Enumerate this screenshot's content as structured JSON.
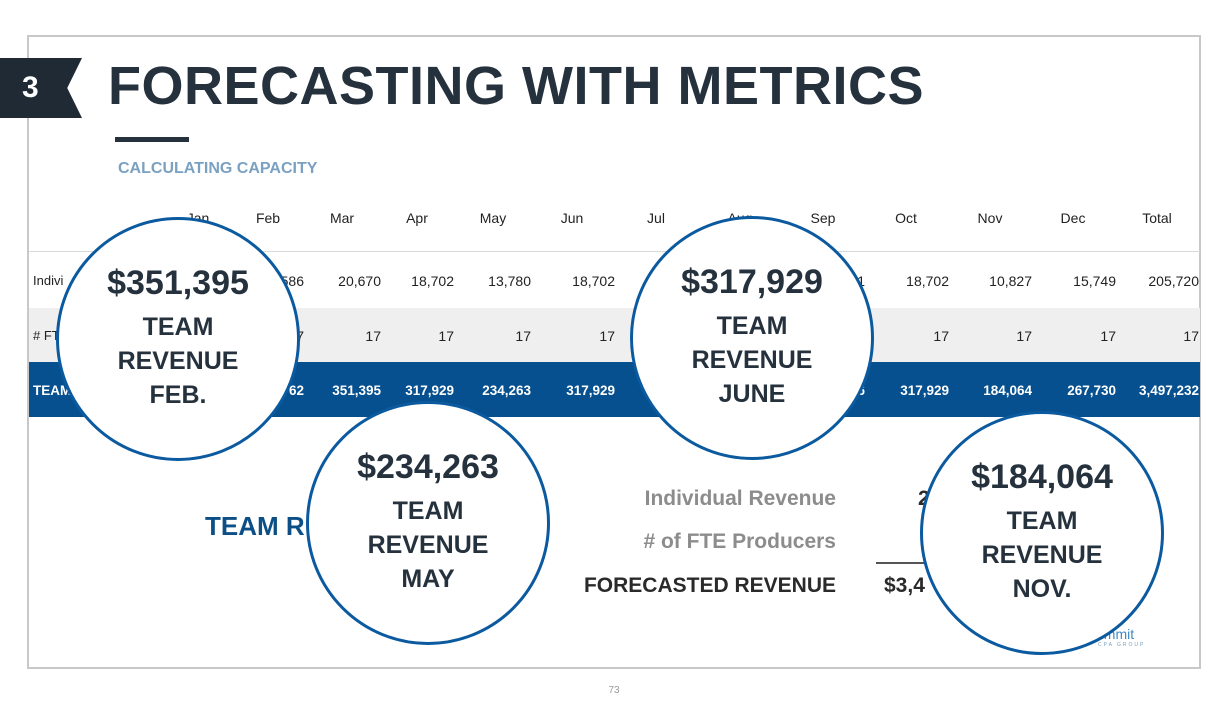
{
  "slide": {
    "section_number": "3",
    "title": "FORECASTING WITH METRICS",
    "subtitle": "CALCULATING CAPACITY",
    "page_number": "73"
  },
  "table": {
    "headers": [
      "Jan",
      "Feb",
      "Mar",
      "Apr",
      "May",
      "Jun",
      "Jul",
      "Aug",
      "Sep",
      "Oct",
      "Nov",
      "Dec",
      "Total"
    ],
    "row_individual": {
      "label": "Indivi",
      "feb": "586",
      "mar": "20,670",
      "apr": "18,702",
      "may": "13,780",
      "jun": "18,702",
      "sep": "1",
      "oct": "18,702",
      "nov": "10,827",
      "dec": "15,749",
      "total": "205,720"
    },
    "row_fte": {
      "label": "# FT",
      "feb": "7",
      "mar": "17",
      "apr": "17",
      "may": "17",
      "jun": "17",
      "oct": "17",
      "nov": "17",
      "dec": "17",
      "total": "17"
    },
    "row_team": {
      "label": "TEAM",
      "feb": "62",
      "mar": "351,395",
      "apr": "317,929",
      "may": "234,263",
      "jun": "317,929",
      "sep": "6",
      "oct": "317,929",
      "nov": "184,064",
      "dec": "267,730",
      "total": "3,497,232"
    }
  },
  "summary": {
    "team_rev_label": "TEAM R",
    "individual_revenue_label": "Individual Revenue",
    "individual_revenue_value": "2",
    "fte_label": "# of FTE Producers",
    "forecasted_label": "FORECASTED REVENUE",
    "forecasted_value": "$3,4"
  },
  "circles": [
    {
      "amount": "$351,395",
      "line1": "TEAM",
      "line2": "REVENUE",
      "line3": "FEB."
    },
    {
      "amount": "$234,263",
      "line1": "TEAM",
      "line2": "REVENUE",
      "line3": "MAY"
    },
    {
      "amount": "$317,929",
      "line1": "TEAM",
      "line2": "REVENUE",
      "line3": "JUNE"
    },
    {
      "amount": "$184,064",
      "line1": "TEAM",
      "line2": "REVENUE",
      "line3": "NOV."
    }
  ],
  "logo": {
    "text": "ummit",
    "sub": "CPA GROUP"
  },
  "colors": {
    "accent_blue": "#06508f",
    "title_dark": "#25313c",
    "subtitle_blue": "#7aa0c2"
  }
}
